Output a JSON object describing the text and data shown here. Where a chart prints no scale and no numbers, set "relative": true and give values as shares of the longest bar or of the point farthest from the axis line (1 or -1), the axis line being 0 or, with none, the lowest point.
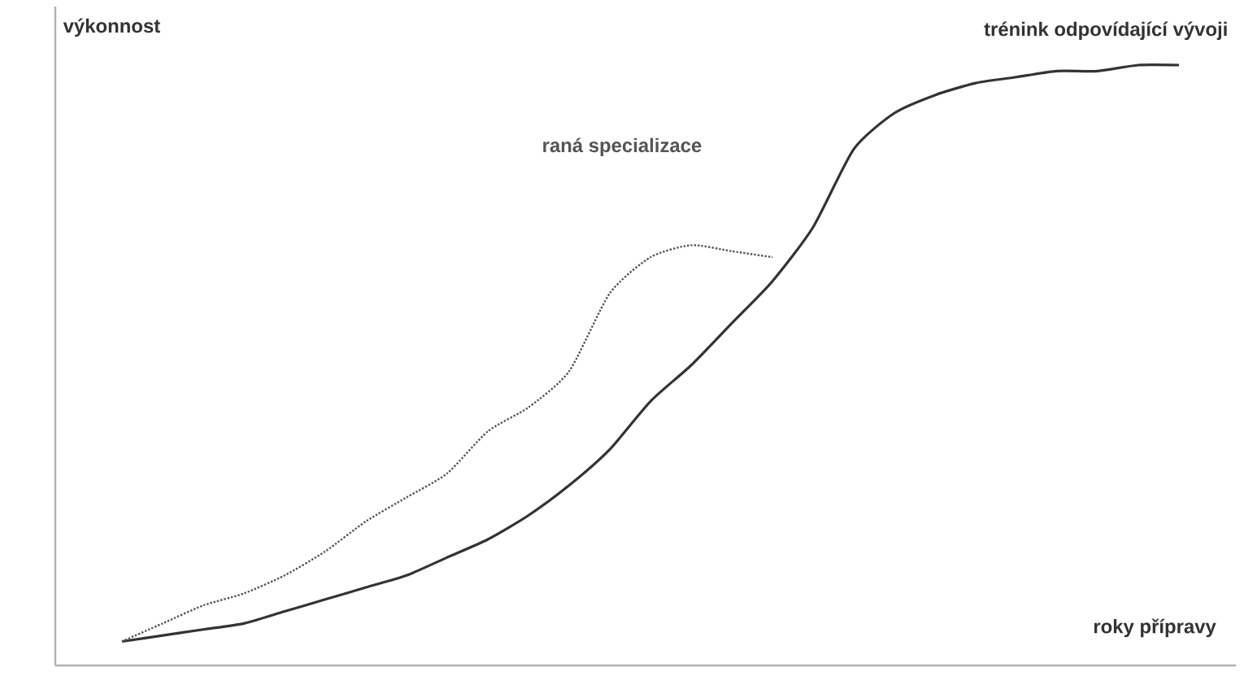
{
  "chart_data": {
    "type": "line",
    "relative": true,
    "xlabel": "roky přípravy",
    "ylabel": "výkonnost",
    "legend": false,
    "categories": [
      null,
      null,
      null,
      null,
      null,
      null,
      null,
      null,
      null,
      null,
      null,
      null,
      null,
      null,
      null,
      null,
      null,
      null,
      null,
      null,
      null,
      null,
      null,
      null,
      null,
      null,
      null
    ],
    "series": [
      {
        "name": "trénink odpovídající vývoji",
        "color": "#333333",
        "line_style": "solid",
        "values": [
          0.04,
          0.05,
          0.06,
          0.07,
          0.09,
          0.11,
          0.13,
          0.15,
          0.18,
          0.21,
          0.25,
          0.3,
          0.36,
          0.44,
          0.5,
          0.57,
          0.64,
          0.73,
          0.86,
          0.92,
          0.95,
          0.97,
          0.98,
          0.99,
          0.99,
          1.0,
          1.0
        ]
      },
      {
        "name": "raná specializace",
        "color": "#555555",
        "line_style": "dotted",
        "values": [
          0.04,
          0.07,
          0.1,
          0.12,
          0.15,
          0.19,
          0.24,
          0.28,
          0.32,
          0.39,
          0.43,
          0.49,
          0.62,
          0.68,
          0.7,
          0.69,
          0.68,
          null,
          null,
          null,
          null,
          null,
          null,
          null,
          null,
          null,
          null
        ]
      }
    ]
  }
}
